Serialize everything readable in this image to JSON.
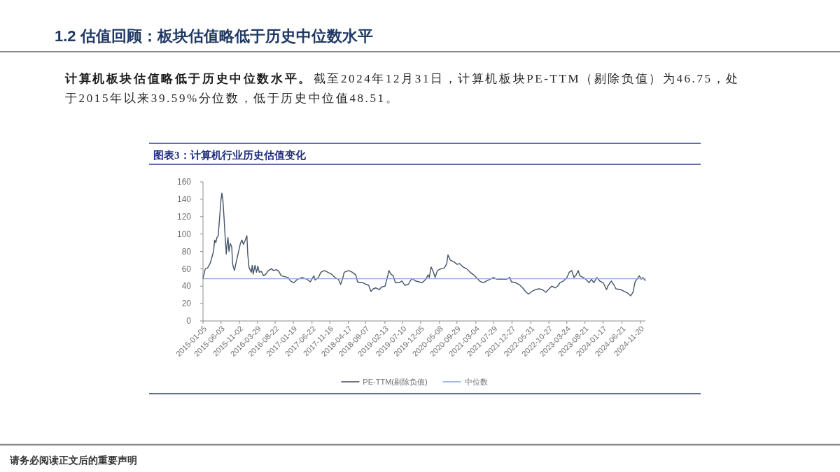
{
  "chart_data": {
    "type": "line",
    "title": "图表3：计算机行业历史估值变化",
    "annotations": [
      "1.2 估值回顾：板块估值略低于历史中位数水平",
      "计算机板块估值略低于历史中位数水平。",
      "截至2024年12月31日，计算机板块PE-TTM（剔除负值）为46.75，处",
      "于2015年以来39.59%分位数，低于历史中位值48.51。",
      "请务必阅读正文后的重要声明"
    ],
    "xlim": [
      "2015-01-05",
      "2024-12-31"
    ],
    "xticks": [
      "2015-01-05",
      "2015-06-03",
      "2015-11-02",
      "2016-03-29",
      "2016-08-22",
      "2017-01-19",
      "2017-06-22",
      "2017-11-16",
      "2018-04-17",
      "2018-09-07",
      "2019-02-13",
      "2019-07-10",
      "2019-12-05",
      "2020-05-08",
      "2020-09-29",
      "2021-03-04",
      "2021-07-29",
      "2021-12-27",
      "2022-05-31",
      "2022-10-27",
      "2023-03-24",
      "2023-08-21",
      "2024-01-17",
      "2024-06-21",
      "2024-11-20"
    ],
    "ylim": [
      0,
      160
    ],
    "yticks": [
      0,
      20,
      40,
      60,
      80,
      100,
      120,
      140,
      160
    ],
    "legend": "bottom",
    "series": [
      {
        "name": "PE-TTM(剔除负值)",
        "color": "#44546a",
        "x": [
          "2015-01-05",
          "2015-01-24",
          "2015-02-12",
          "2015-03-04",
          "2015-03-17",
          "2015-04-02",
          "2015-04-11",
          "2015-04-21",
          "2015-04-30",
          "2015-05-10",
          "2015-05-20",
          "2015-06-02",
          "2015-06-10",
          "2015-06-18",
          "2015-06-27",
          "2015-07-07",
          "2015-07-16",
          "2015-07-22",
          "2015-07-30",
          "2015-08-07",
          "2015-08-18",
          "2015-08-30",
          "2015-09-06",
          "2015-09-14",
          "2015-09-22",
          "2015-10-03",
          "2015-10-21",
          "2015-11-09",
          "2015-11-22",
          "2015-12-04",
          "2015-12-17",
          "2016-01-02",
          "2016-01-09",
          "2016-01-19",
          "2016-01-31",
          "2016-02-07",
          "2016-02-15",
          "2016-02-23",
          "2016-03-09",
          "2016-03-21",
          "2016-04-01",
          "2016-04-13",
          "2016-04-30",
          "2016-05-19",
          "2016-06-07",
          "2016-06-27",
          "2016-07-22",
          "2016-08-10",
          "2016-09-02",
          "2016-09-21",
          "2016-10-11",
          "2016-11-08",
          "2016-12-07",
          "2016-12-27",
          "2017-01-24",
          "2017-02-22",
          "2017-04-02",
          "2017-05-10",
          "2017-06-08",
          "2017-07-07",
          "2017-07-18",
          "2017-08-14",
          "2017-09-03",
          "2017-10-01",
          "2017-10-30",
          "2017-11-28",
          "2017-12-27",
          "2018-01-25",
          "2018-02-13",
          "2018-03-04",
          "2018-03-14",
          "2018-04-22",
          "2018-05-20",
          "2018-06-18",
          "2018-07-02",
          "2018-07-27",
          "2018-08-15",
          "2018-09-13",
          "2018-10-02",
          "2018-10-21",
          "2018-11-10",
          "2018-11-29",
          "2018-12-28",
          "2019-01-16",
          "2019-02-14",
          "2019-03-05",
          "2019-03-18",
          "2019-04-03",
          "2019-04-22",
          "2019-05-11",
          "2019-06-09",
          "2019-07-04",
          "2019-07-27",
          "2019-08-25",
          "2019-09-23",
          "2019-10-22",
          "2019-11-20",
          "2019-12-18",
          "2020-01-16",
          "2020-02-04",
          "2020-02-14",
          "2020-02-29",
          "2020-03-20",
          "2020-04-02",
          "2020-04-21",
          "2020-05-20",
          "2020-06-18",
          "2020-07-07",
          "2020-07-17",
          "2020-08-05",
          "2020-09-03",
          "2020-10-02",
          "2020-10-21",
          "2020-11-19",
          "2020-12-18",
          "2021-01-16",
          "2021-02-14",
          "2021-03-15",
          "2021-04-03",
          "2021-05-02",
          "2021-05-31",
          "2021-06-28",
          "2021-07-27",
          "2021-08-25",
          "2021-10-03",
          "2021-11-10",
          "2021-12-09",
          "2021-12-22",
          "2022-01-26",
          "2022-02-24",
          "2022-03-25",
          "2022-04-23",
          "2022-05-12",
          "2022-06-10",
          "2022-07-09",
          "2022-08-06",
          "2022-09-04",
          "2022-10-03",
          "2022-10-22",
          "2022-11-20",
          "2022-12-19",
          "2023-01-07",
          "2023-01-27",
          "2023-02-24",
          "2023-03-25",
          "2023-04-13",
          "2023-05-03",
          "2023-05-22",
          "2023-06-10",
          "2023-06-26",
          "2023-07-09",
          "2023-08-07",
          "2023-08-26",
          "2023-09-24",
          "2023-10-13",
          "2023-11-02",
          "2023-11-27",
          "2023-12-20",
          "2024-01-18",
          "2024-02-15",
          "2024-02-25",
          "2024-03-25",
          "2024-04-13",
          "2024-05-02",
          "2024-06-10",
          "2024-07-09",
          "2024-08-07",
          "2024-09-01",
          "2024-09-20",
          "2024-10-07",
          "2024-10-22",
          "2024-11-11",
          "2024-11-26",
          "2024-12-10",
          "2024-12-20",
          "2024-12-31"
        ],
        "values": [
          49,
          60,
          61,
          66,
          72,
          80,
          93,
          90,
          96,
          98,
          115,
          139,
          147,
          139,
          120,
          96,
          77,
          88,
          96,
          80,
          89,
          85,
          66,
          61,
          58,
          66,
          77,
          89,
          93,
          88,
          92,
          98,
          77,
          62,
          58,
          56,
          64,
          54,
          64,
          56,
          63,
          56,
          57,
          52,
          54,
          58,
          60,
          58,
          59,
          57,
          52,
          51,
          50,
          46,
          44,
          48,
          50,
          48,
          45,
          52,
          47,
          50,
          56,
          58,
          56,
          54,
          50,
          48,
          42,
          50,
          56,
          58,
          56,
          53,
          45,
          44,
          44,
          42,
          41,
          34,
          37,
          38,
          36,
          39,
          40,
          50,
          58,
          54,
          52,
          44,
          44,
          46,
          41,
          42,
          49,
          46,
          45,
          44,
          48,
          53,
          50,
          62,
          56,
          50,
          58,
          60,
          61,
          66,
          76,
          70,
          68,
          65,
          66,
          62,
          60,
          56,
          53,
          49,
          46,
          44,
          46,
          48,
          50,
          48,
          48,
          48,
          50,
          45,
          44,
          42,
          38,
          33,
          31,
          34,
          36,
          37,
          36,
          33,
          36,
          40,
          38,
          40,
          44,
          46,
          50,
          56,
          58,
          50,
          53,
          58,
          52,
          50,
          48,
          44,
          48,
          44,
          50,
          46,
          44,
          36,
          40,
          46,
          42,
          37,
          36,
          34,
          32,
          29,
          33,
          45,
          48,
          52,
          48,
          50,
          48,
          46.75
        ]
      },
      {
        "name": "中位数",
        "color": "#8eaadb",
        "x": [
          "2015-01-05",
          "2024-12-31"
        ],
        "values": [
          48.51,
          48.51
        ]
      }
    ]
  }
}
